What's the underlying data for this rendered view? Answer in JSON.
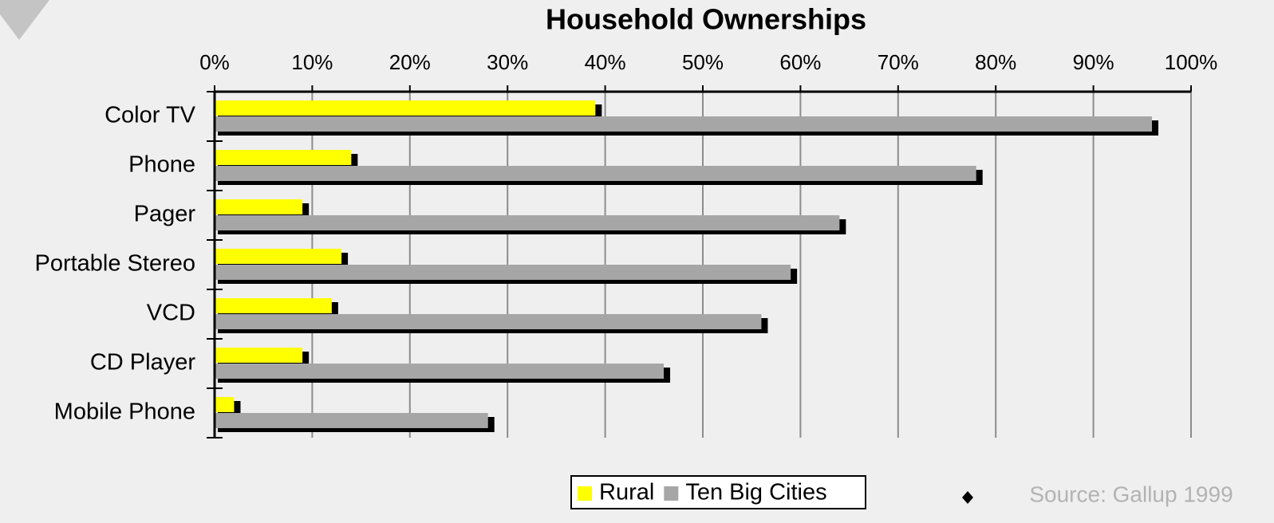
{
  "chart_data": {
    "type": "bar",
    "orientation": "horizontal",
    "title": "Household Ownerships",
    "categories": [
      "Color TV",
      "Phone",
      "Pager",
      "Portable Stereo",
      "VCD",
      "CD Player",
      "Mobile Phone"
    ],
    "series": [
      {
        "name": "Rural",
        "color": "#ffff00",
        "values": [
          39,
          14,
          9,
          13,
          12,
          9,
          2
        ]
      },
      {
        "name": "Ten Big Cities",
        "color": "#a6a6a6",
        "values": [
          96,
          78,
          64,
          59,
          56,
          46,
          28
        ]
      }
    ],
    "xlim": [
      0,
      100
    ],
    "xticks": [
      {
        "value": 0,
        "label": "0%"
      },
      {
        "value": 10,
        "label": "10%"
      },
      {
        "value": 20,
        "label": "20%"
      },
      {
        "value": 30,
        "label": "30%"
      },
      {
        "value": 40,
        "label": "40%"
      },
      {
        "value": 50,
        "label": "50%"
      },
      {
        "value": 60,
        "label": "60%"
      },
      {
        "value": 70,
        "label": "70%"
      },
      {
        "value": 80,
        "label": "80%"
      },
      {
        "value": 90,
        "label": "90%"
      },
      {
        "value": 100,
        "label": "100%"
      }
    ],
    "grid": true,
    "legend": "bottom",
    "source": "Source: Gallup 1999"
  }
}
